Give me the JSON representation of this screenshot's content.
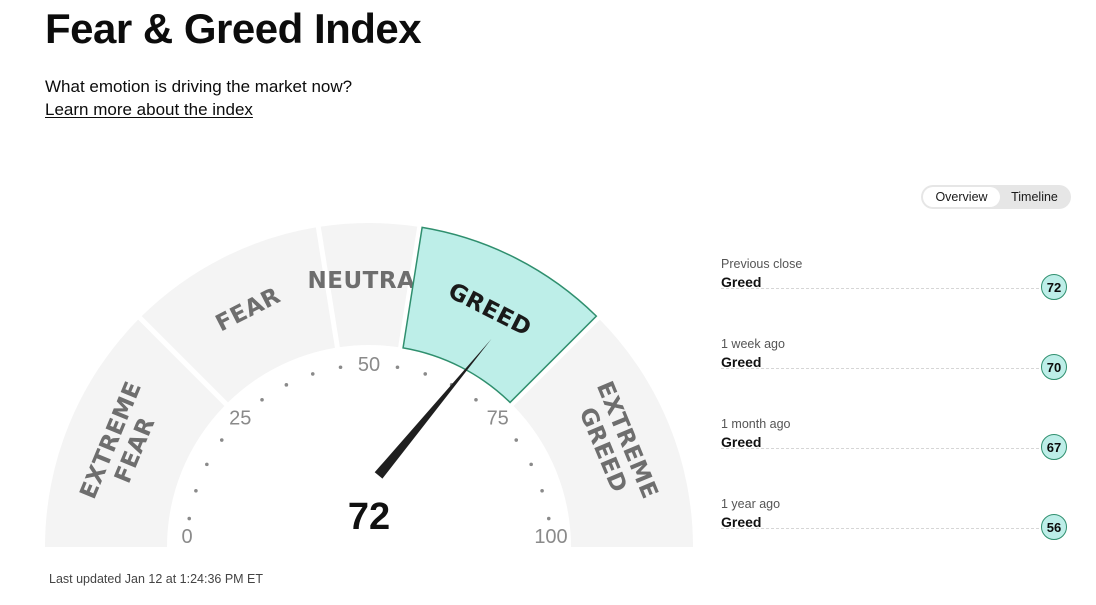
{
  "header": {
    "title": "Fear & Greed Index",
    "subtitle": "What emotion is driving the market now?",
    "learn_link": "Learn more about the index"
  },
  "gauge": {
    "value": 72,
    "value_label": "72",
    "segments": [
      {
        "label": [
          "EXTREME",
          "FEAR"
        ]
      },
      {
        "label": [
          "FEAR"
        ]
      },
      {
        "label": [
          "NEUTRAL"
        ]
      },
      {
        "label": [
          "GREED"
        ],
        "active": true
      },
      {
        "label": [
          "EXTREME",
          "GREED"
        ]
      }
    ],
    "ticks": [
      "0",
      "25",
      "50",
      "75",
      "100"
    ]
  },
  "toggle": {
    "overview": "Overview",
    "timeline": "Timeline",
    "active": "overview"
  },
  "history": [
    {
      "label": "Previous close",
      "value": "Greed",
      "score": "72"
    },
    {
      "label": "1 week ago",
      "value": "Greed",
      "score": "70"
    },
    {
      "label": "1 month ago",
      "value": "Greed",
      "score": "67"
    },
    {
      "label": "1 year ago",
      "value": "Greed",
      "score": "56"
    }
  ],
  "updated": "Last updated Jan 12 at 1:24:36 PM ET",
  "colors": {
    "segment": "#f4f4f4",
    "active_fill": "#bdeee8",
    "active_stroke": "#2f8f6e",
    "needle": "#1f1f1f"
  }
}
